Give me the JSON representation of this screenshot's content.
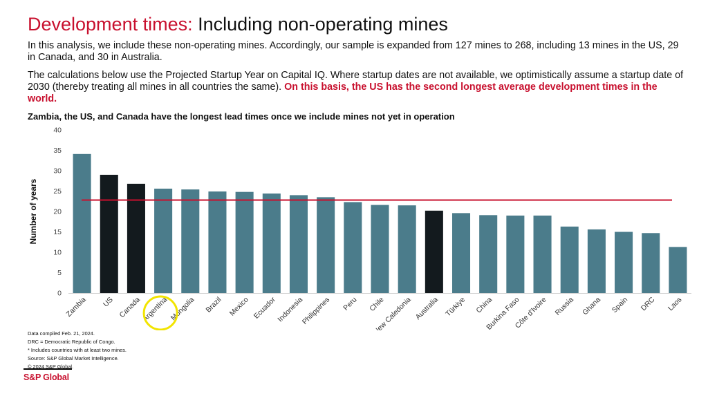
{
  "header": {
    "title_accent": "Development times:",
    "title_rest": "Including non-operating mines"
  },
  "body": {
    "para1": "In this analysis, we include these non-operating mines. Accordingly, our sample is expanded from 127 mines to 268, including 13 mines in the US, 29 in Canada, and 30 in Australia.",
    "para2_plain": "The calculations below use the Projected Startup Year on Capital IQ. Where startup dates are not available, we optimistically assume a startup date of 2030 (thereby treating all mines in all countries the same).",
    "para2_highlight": "On this basis, the US has the second longest average development times in the world."
  },
  "chart_data": {
    "type": "bar",
    "title": "Zambia, the US, and Canada have the longest lead times once we include mines not yet in operation",
    "xlabel": "",
    "ylabel": "Number of years",
    "ylim": [
      0,
      40
    ],
    "yticks": [
      0,
      5,
      10,
      15,
      20,
      25,
      30,
      35,
      40
    ],
    "categories": [
      "Zambia",
      "US",
      "Canada",
      "Argentina",
      "Mongolia",
      "Brazil",
      "Mexico",
      "Ecuador",
      "Indonesia",
      "Philippines",
      "Peru",
      "Chile",
      "New Caledonia",
      "Australia",
      "Türkiye",
      "China",
      "Burkina Faso",
      "Côte d'Ivoire",
      "Russia",
      "Ghana",
      "Spain",
      "DRC",
      "Laos"
    ],
    "values": [
      34.1,
      29.0,
      26.8,
      25.6,
      25.4,
      24.9,
      24.8,
      24.4,
      24.0,
      23.5,
      22.3,
      21.6,
      21.5,
      20.2,
      19.6,
      19.1,
      19.0,
      19.0,
      16.3,
      15.6,
      15.0,
      14.7,
      11.3
    ],
    "highlighted": [
      "US",
      "Canada",
      "Australia"
    ],
    "average_line": 22.8,
    "colors": {
      "default_bar": "#4b7c8b",
      "highlight_bar": "#131a1e",
      "average_line": "#c8102e",
      "circle": "#f2e400"
    },
    "circled_category": "Argentina"
  },
  "notes": [
    "Data compiled Feb. 21, 2024.",
    "DRC = Democratic Republic of Congo.",
    "* Includes countries with at least two mines.",
    "Source: S&P Global Market Intelligence.",
    "© 2024 S&P Global."
  ],
  "footer": {
    "logo_text": "S&P Global"
  }
}
